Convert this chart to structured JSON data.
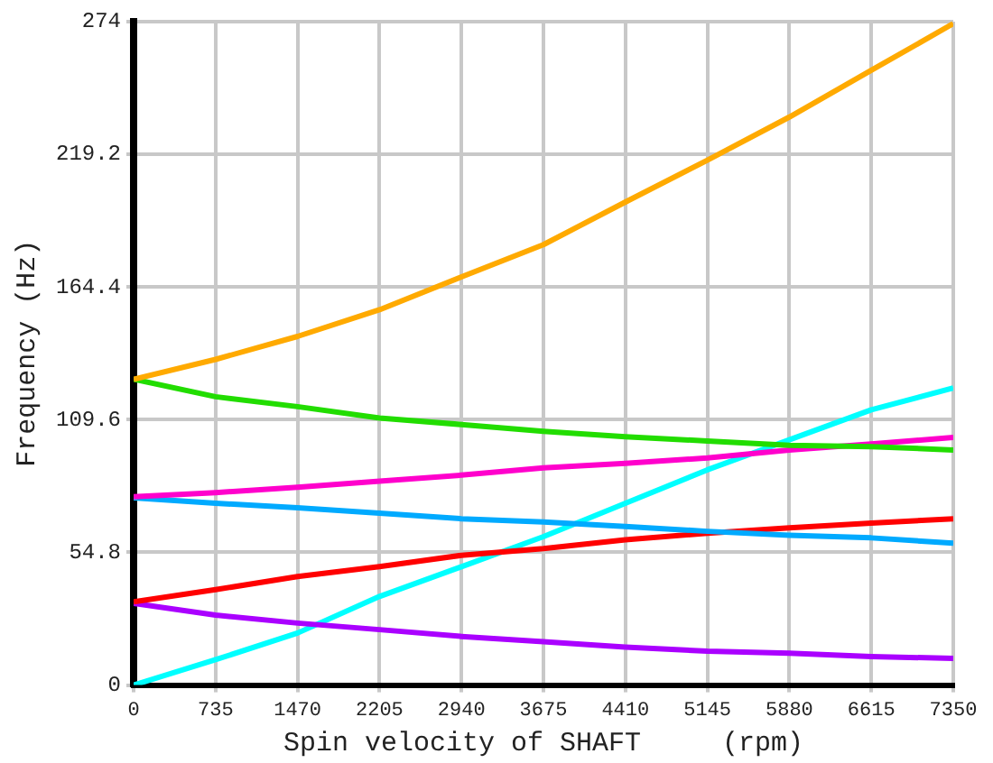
{
  "chart_data": {
    "type": "line",
    "xlabel": "Spin velocity of SHAFT     (rpm)",
    "ylabel": "Frequency (Hz)",
    "x": [
      0,
      735,
      1470,
      2205,
      2940,
      3675,
      4410,
      5145,
      5880,
      6615,
      7350
    ],
    "xlim": [
      0,
      7350
    ],
    "xticks": [
      0,
      735,
      1470,
      2205,
      2940,
      3675,
      4410,
      5145,
      5880,
      6615,
      7350
    ],
    "ylim": [
      0,
      274
    ],
    "yticks": [
      0,
      54.8,
      109.6,
      164.4,
      219.2,
      274
    ],
    "grid": true,
    "series": [
      {
        "color": "#ffaa00",
        "values": [
          126.3,
          134.5,
          144,
          155,
          168.6,
          181.9,
          199.5,
          216.8,
          234.6,
          253.9,
          273.2
        ]
      },
      {
        "color": "#22dd00",
        "values": [
          126.3,
          119.1,
          115,
          110.3,
          107.6,
          104.8,
          102.6,
          100.8,
          99,
          98.5,
          97.1
        ]
      },
      {
        "color": "#ff00cc",
        "values": [
          77.8,
          79.5,
          81.7,
          84.2,
          86.7,
          89.7,
          91.6,
          93.8,
          97.1,
          99.6,
          102.3
        ]
      },
      {
        "color": "#00aaff",
        "values": [
          77.3,
          75.1,
          73.2,
          71,
          68.7,
          67.4,
          65.5,
          63.5,
          61.9,
          60.8,
          58.6
        ]
      },
      {
        "color": "#ff0000",
        "values": [
          34.4,
          39.4,
          44.8,
          48.9,
          53.6,
          56.4,
          60,
          62.7,
          64.9,
          66.9,
          68.7
        ]
      },
      {
        "color": "#aa00ff",
        "values": [
          33.8,
          28.9,
          25.6,
          22.9,
          20.1,
          17.9,
          15.7,
          14,
          13.2,
          11.8,
          11
        ]
      },
      {
        "color": "#00ffff",
        "values": [
          0,
          10.5,
          21.5,
          36.6,
          48.9,
          61.3,
          75.1,
          88.9,
          101.3,
          113.7,
          122.7
        ]
      }
    ]
  }
}
